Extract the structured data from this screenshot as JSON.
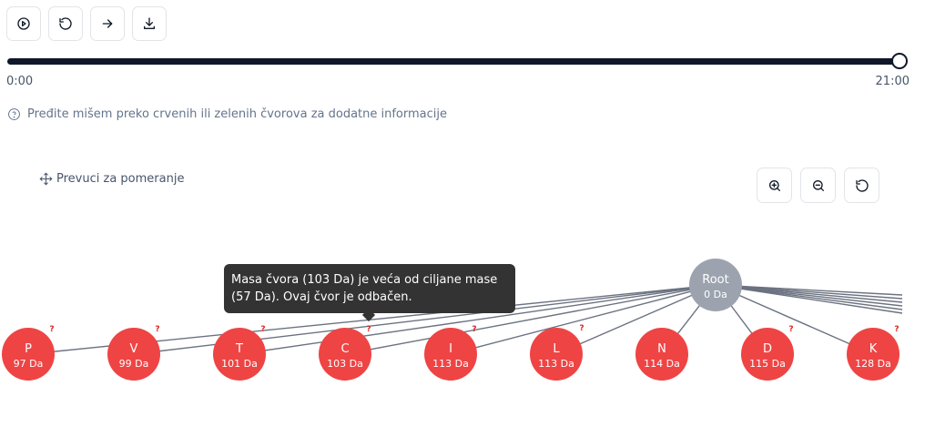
{
  "toolbar": {
    "buttons": [
      {
        "name": "play-button",
        "icon": "play-circle-icon"
      },
      {
        "name": "restart-button",
        "icon": "rotate-ccw-icon"
      },
      {
        "name": "step-forward-button",
        "icon": "arrow-right-icon"
      },
      {
        "name": "download-button",
        "icon": "download-icon"
      }
    ]
  },
  "timeline": {
    "start_label": "0:00",
    "end_label": "21:00",
    "progress": 1.0
  },
  "hint": {
    "text": "Pređite mišem preko crvenih ili zelenih čvorova za dodatne informacije"
  },
  "drag_hint": {
    "text": "Prevuci za pomeranje"
  },
  "zoom": {
    "buttons": [
      {
        "icon": "zoom-in-icon"
      },
      {
        "icon": "zoom-out-icon"
      },
      {
        "icon": "reset-icon"
      }
    ]
  },
  "tree": {
    "root": {
      "label": "Root",
      "mass": "0 Da",
      "color": "#9ca3af"
    },
    "rejected_color": "#ef4444",
    "edge_marker": "?",
    "nodes": [
      {
        "label": "P",
        "mass": "97 Da"
      },
      {
        "label": "V",
        "mass": "99 Da"
      },
      {
        "label": "T",
        "mass": "101 Da"
      },
      {
        "label": "C",
        "mass": "103 Da"
      },
      {
        "label": "I",
        "mass": "113 Da"
      },
      {
        "label": "L",
        "mass": "113 Da"
      },
      {
        "label": "N",
        "mass": "114 Da"
      },
      {
        "label": "D",
        "mass": "115 Da"
      },
      {
        "label": "K",
        "mass": "128 Da"
      }
    ]
  },
  "tooltip": {
    "text": "Masa čvora (103 Da) je veća od ciljane mase (57 Da). Ovaj čvor je odbačen."
  }
}
